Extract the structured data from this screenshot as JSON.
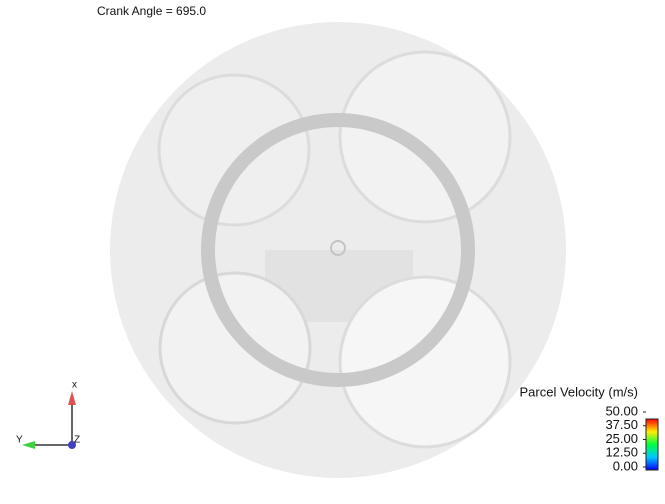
{
  "header": {
    "title": "Crank Angle = 695.0"
  },
  "legend": {
    "title": "Parcel Velocity (m/s)",
    "range": [
      0,
      50
    ],
    "ticks": [
      {
        "value": 50,
        "label": "50.00"
      },
      {
        "value": 37.5,
        "label": "37.50"
      },
      {
        "value": 25,
        "label": "25.00"
      },
      {
        "value": 12.5,
        "label": "12.50"
      },
      {
        "value": 0,
        "label": "0.00"
      }
    ]
  },
  "triad": {
    "x": "x",
    "y": "Y",
    "z": "Z"
  }
}
